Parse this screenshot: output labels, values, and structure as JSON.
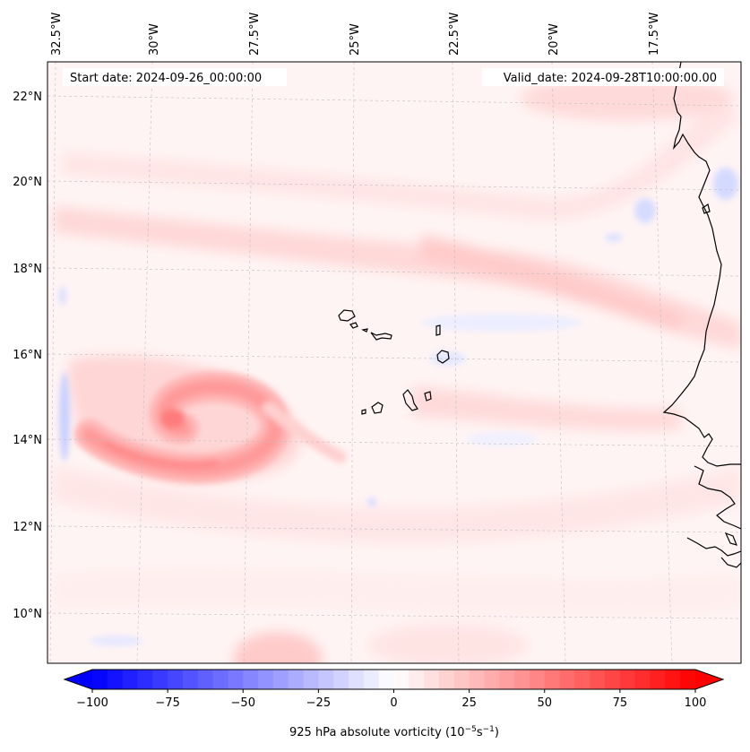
{
  "map": {
    "start_label": "Start date: 2024-09-26_00:00:00",
    "valid_label": "Valid_date: 2024-09-28T10:00:00.00",
    "lon_labels": [
      "32.5°W",
      "30°W",
      "27.5°W",
      "25°W",
      "22.5°W",
      "20°W",
      "17.5°W"
    ],
    "lat_labels": [
      "22°N",
      "20°N",
      "18°N",
      "16°N",
      "14°N",
      "12°N",
      "10°N"
    ],
    "field": "925 hPa absolute vorticity",
    "gridlines": true,
    "coastline_color": "#000000"
  },
  "colorbar": {
    "label_prefix": "925 hPa absolute vorticity (10",
    "label_exp1": "−5",
    "label_mid": "s",
    "label_exp2": "−1",
    "label_suffix": ")",
    "tick_labels": [
      "−100",
      "−75",
      "−50",
      "−25",
      "0",
      "25",
      "50",
      "75",
      "100"
    ],
    "min": -100,
    "max": 100,
    "step": 5,
    "extend": "both",
    "cmap": "bwr",
    "neg_color": "#0000ff",
    "mid_color": "#ffffff",
    "pos_color": "#ff0000"
  }
}
